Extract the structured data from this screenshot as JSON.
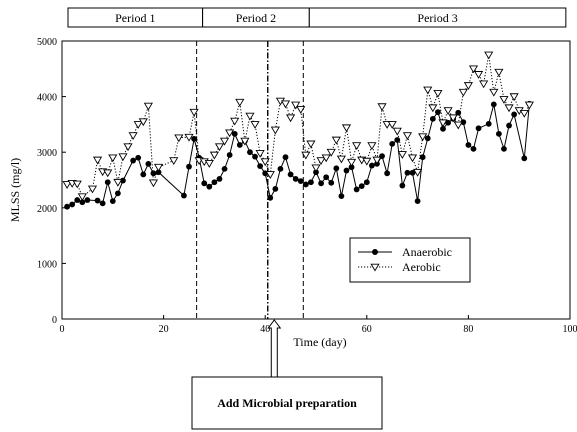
{
  "chart_data": {
    "type": "line",
    "xlabel": "Time (day)",
    "ylabel": "MLSS (mg/l)",
    "xlim": [
      0,
      100
    ],
    "ylim": [
      0,
      5000
    ],
    "x_ticks": [
      0,
      20,
      40,
      60,
      80,
      100
    ],
    "y_ticks": [
      0,
      1000,
      2000,
      3000,
      4000,
      5000
    ],
    "grid": false,
    "legend_position": "center-right",
    "periods": [
      {
        "label": "Period 1",
        "start": 0,
        "end": 26.5
      },
      {
        "label": "Period 2",
        "start": 26.5,
        "end": 47.5
      },
      {
        "label": "Period 3",
        "start": 47.5,
        "end": 98
      }
    ],
    "vertical_lines": [
      {
        "x": 26.5,
        "style": "dashed"
      },
      {
        "x": 40.5,
        "style": "dashdot"
      },
      {
        "x": 47.5,
        "style": "dashed"
      }
    ],
    "annotation": {
      "text": "Add Microbial preparation",
      "x": 41
    },
    "series": [
      {
        "name": "Anaerobic",
        "marker": "circle",
        "line": "solid",
        "color": "#000000",
        "points": [
          [
            1,
            2020
          ],
          [
            2,
            2060
          ],
          [
            3,
            2140
          ],
          [
            4,
            2100
          ],
          [
            5,
            2140
          ],
          [
            7,
            2130
          ],
          [
            8,
            2080
          ],
          [
            9,
            2460
          ],
          [
            10,
            2120
          ],
          [
            11,
            2260
          ],
          [
            12,
            2490
          ],
          [
            14,
            2850
          ],
          [
            15,
            2900
          ],
          [
            16,
            2600
          ],
          [
            17,
            2790
          ],
          [
            18,
            2620
          ],
          [
            19,
            2640
          ],
          [
            24,
            2220
          ],
          [
            25,
            2740
          ],
          [
            26,
            3240
          ],
          [
            27,
            2900
          ],
          [
            28,
            2440
          ],
          [
            29,
            2380
          ],
          [
            30,
            2460
          ],
          [
            31,
            2520
          ],
          [
            32,
            2700
          ],
          [
            33,
            2950
          ],
          [
            34,
            3330
          ],
          [
            35,
            3130
          ],
          [
            36,
            3200
          ],
          [
            37,
            3000
          ],
          [
            38,
            2920
          ],
          [
            39,
            2750
          ],
          [
            40,
            2620
          ],
          [
            41,
            2180
          ],
          [
            42,
            2340
          ],
          [
            43,
            2700
          ],
          [
            44,
            2910
          ],
          [
            45,
            2600
          ],
          [
            46,
            2520
          ],
          [
            47,
            2480
          ],
          [
            48,
            2420
          ],
          [
            49,
            2460
          ],
          [
            50,
            2640
          ],
          [
            51,
            2440
          ],
          [
            52,
            2550
          ],
          [
            53,
            2450
          ],
          [
            54,
            2710
          ],
          [
            55,
            2210
          ],
          [
            56,
            2670
          ],
          [
            57,
            2730
          ],
          [
            58,
            2330
          ],
          [
            59,
            2390
          ],
          [
            60,
            2460
          ],
          [
            61,
            2760
          ],
          [
            62,
            2790
          ],
          [
            63,
            2930
          ],
          [
            64,
            2620
          ],
          [
            65,
            3150
          ],
          [
            66,
            3220
          ],
          [
            67,
            2400
          ],
          [
            68,
            2630
          ],
          [
            69,
            2630
          ],
          [
            70,
            2120
          ],
          [
            71,
            2910
          ],
          [
            72,
            3250
          ],
          [
            73,
            3600
          ],
          [
            74,
            3720
          ],
          [
            75,
            3420
          ],
          [
            76,
            3530
          ],
          [
            77,
            3600
          ],
          [
            78,
            3710
          ],
          [
            79,
            3540
          ],
          [
            80,
            3130
          ],
          [
            81,
            3060
          ],
          [
            82,
            3430
          ],
          [
            84,
            3510
          ],
          [
            85,
            3860
          ],
          [
            86,
            3330
          ],
          [
            87,
            3060
          ],
          [
            88,
            3480
          ],
          [
            89,
            3680
          ],
          [
            91,
            2890
          ],
          [
            92,
            3870
          ]
        ]
      },
      {
        "name": "Aerobic",
        "marker": "triangle-down",
        "line": "dotted",
        "color": "#000000",
        "points": [
          [
            1,
            2420
          ],
          [
            2,
            2440
          ],
          [
            3,
            2430
          ],
          [
            4,
            2200
          ],
          [
            6,
            2340
          ],
          [
            7,
            2860
          ],
          [
            8,
            2650
          ],
          [
            9,
            2630
          ],
          [
            10,
            2900
          ],
          [
            11,
            2460
          ],
          [
            12,
            2920
          ],
          [
            13,
            3100
          ],
          [
            14,
            3300
          ],
          [
            15,
            3500
          ],
          [
            16,
            3550
          ],
          [
            17,
            3830
          ],
          [
            18,
            2450
          ],
          [
            19,
            2730
          ],
          [
            22,
            2850
          ],
          [
            23,
            3260
          ],
          [
            25,
            3270
          ],
          [
            26,
            3720
          ],
          [
            27,
            2850
          ],
          [
            28,
            2830
          ],
          [
            29,
            2800
          ],
          [
            30,
            2950
          ],
          [
            31,
            3100
          ],
          [
            32,
            3200
          ],
          [
            33,
            3350
          ],
          [
            34,
            3560
          ],
          [
            35,
            3900
          ],
          [
            36,
            3200
          ],
          [
            37,
            3650
          ],
          [
            38,
            3500
          ],
          [
            39,
            2980
          ],
          [
            40,
            2830
          ],
          [
            41,
            2600
          ],
          [
            42,
            3400
          ],
          [
            43,
            3920
          ],
          [
            44,
            3870
          ],
          [
            45,
            3620
          ],
          [
            46,
            3850
          ],
          [
            47,
            3770
          ],
          [
            48,
            2950
          ],
          [
            49,
            3150
          ],
          [
            50,
            2720
          ],
          [
            51,
            2850
          ],
          [
            52,
            2900
          ],
          [
            53,
            3000
          ],
          [
            54,
            3220
          ],
          [
            55,
            2880
          ],
          [
            56,
            3440
          ],
          [
            57,
            2820
          ],
          [
            58,
            3120
          ],
          [
            59,
            2860
          ],
          [
            60,
            2840
          ],
          [
            61,
            3120
          ],
          [
            62,
            2860
          ],
          [
            63,
            3820
          ],
          [
            64,
            3500
          ],
          [
            65,
            3500
          ],
          [
            66,
            3380
          ],
          [
            67,
            2960
          ],
          [
            68,
            3300
          ],
          [
            69,
            2900
          ],
          [
            70,
            2640
          ],
          [
            71,
            3280
          ],
          [
            72,
            4120
          ],
          [
            73,
            3800
          ],
          [
            74,
            4060
          ],
          [
            75,
            3530
          ],
          [
            76,
            3750
          ],
          [
            77,
            3620
          ],
          [
            78,
            3490
          ],
          [
            79,
            4080
          ],
          [
            80,
            4200
          ],
          [
            81,
            4500
          ],
          [
            82,
            4400
          ],
          [
            83,
            4230
          ],
          [
            84,
            4750
          ],
          [
            85,
            4080
          ],
          [
            86,
            4440
          ],
          [
            87,
            3950
          ],
          [
            88,
            3800
          ],
          [
            89,
            4000
          ],
          [
            90,
            3750
          ],
          [
            91,
            3700
          ],
          [
            92,
            3850
          ]
        ]
      }
    ]
  }
}
